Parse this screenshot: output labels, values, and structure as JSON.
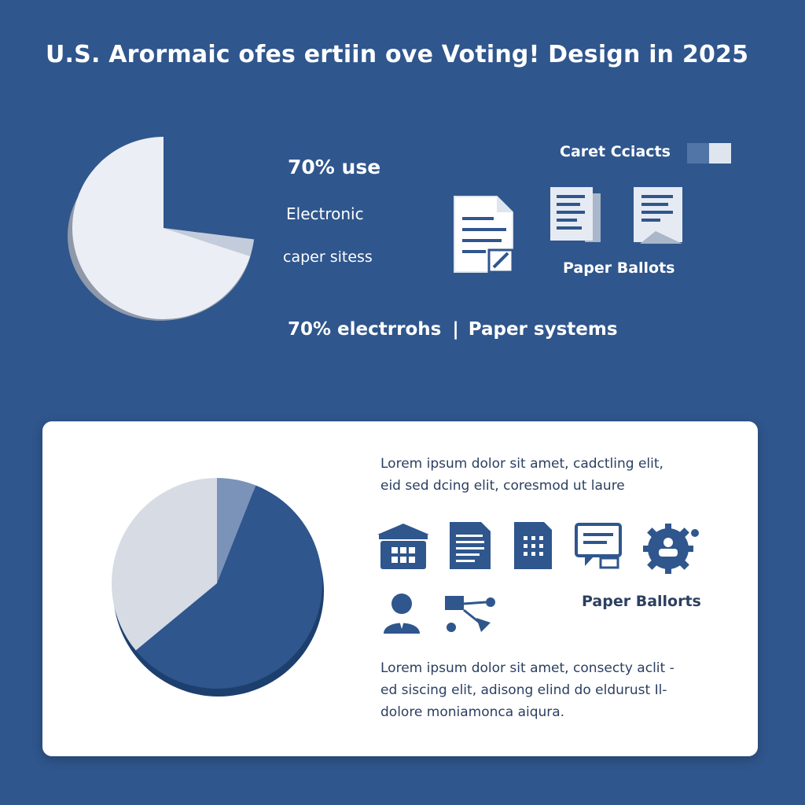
{
  "title": "U.S. Arormaic ofes ertiin ove Voting! Design in 2025",
  "stats": {
    "primary": "70% use",
    "line2": "Electronic",
    "line3": "caper sitess"
  },
  "summary": {
    "left": "70% electrrohs",
    "separator": "|",
    "right": "Paper systems"
  },
  "legend": {
    "label": "Caret Cciacts",
    "colors": [
      "#5275a8",
      "#dfe5ef"
    ]
  },
  "top_icons": {
    "label": "Paper Ballots",
    "icons": [
      "document-edit-icon",
      "paper-stack-icon",
      "paper-ballot-icon"
    ]
  },
  "card": {
    "text_top": [
      "Lorem ipsum dolor sit amet, cadctling elit,",
      "eid  sed dcing elit, coresmod  ut laure"
    ],
    "text_bottom": [
      "Lorem ipsum dolor sit amet, consecty aclit -",
      "ed siscing  elit, adisong elind do eldurust Il-",
      "dolore  moniamonca aiqura."
    ],
    "paper_label": "Paper Ballorts",
    "icons": [
      "building-icon",
      "document-icon",
      "calculator-icon",
      "ballot-screen-icon",
      "gear-people-icon",
      "person-icon",
      "network-icon"
    ]
  },
  "chart_data": [
    {
      "type": "pie",
      "title": "",
      "values": [
        70,
        27,
        3
      ],
      "colors": [
        "#ebeef4",
        "#2f568d",
        "#c3ccdb"
      ]
    },
    {
      "type": "pie",
      "title": "",
      "values": [
        58,
        36,
        6
      ],
      "colors": [
        "#2f568d",
        "#d6dbe4",
        "#7b93b8"
      ]
    }
  ],
  "colors": {
    "background": "#2f568d",
    "card": "#ffffff",
    "icon_dark": "#2f568d",
    "text_dark": "#2b3f60"
  }
}
